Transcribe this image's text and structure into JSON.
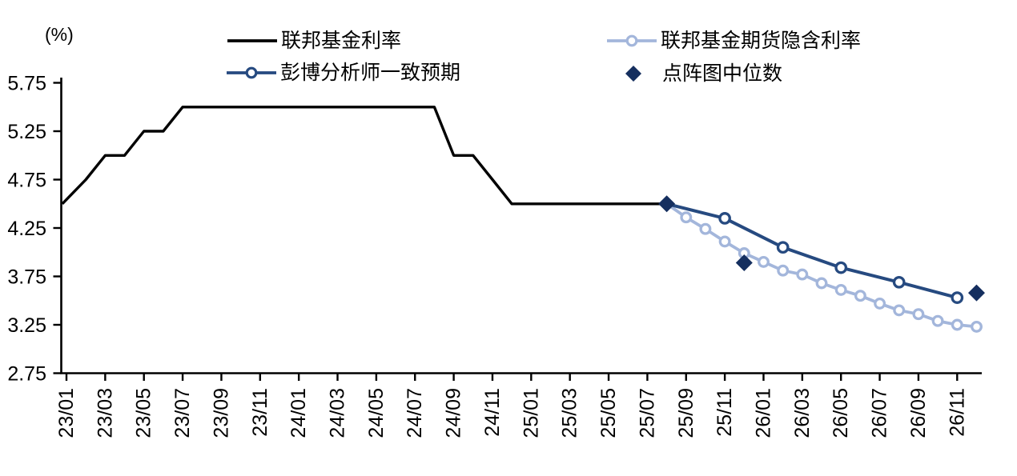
{
  "chart_data": {
    "type": "line",
    "title": "",
    "unit_label": "(%)",
    "background_color": "#ffffff",
    "axis_color": "#000000",
    "grid": false,
    "y_axis": {
      "min": 2.75,
      "max": 5.75,
      "step": 0.5,
      "ticks": [
        5.75,
        5.25,
        4.75,
        4.25,
        3.75,
        3.25,
        2.75
      ],
      "tick_labels": [
        "5.75",
        "5.25",
        "4.75",
        "4.25",
        "3.75",
        "3.25",
        "2.75"
      ]
    },
    "x_axis": {
      "first_month": "23/01",
      "last_month": "26/12",
      "tick_labels": [
        "23/01",
        "23/03",
        "23/05",
        "23/07",
        "23/09",
        "23/11",
        "24/01",
        "24/03",
        "24/05",
        "24/07",
        "24/09",
        "24/11",
        "25/01",
        "25/03",
        "25/05",
        "25/07",
        "25/09",
        "25/11",
        "26/01",
        "26/03",
        "26/05",
        "26/07",
        "26/09",
        "26/11"
      ],
      "label_rotation_deg": -90
    },
    "series": [
      {
        "name": "联邦基金期货隐含利率",
        "color": "#A3B6DB",
        "width": 3.8,
        "marker": "circle",
        "marker_r": 5.8,
        "marker_skip_first": true,
        "points": [
          [
            "25/08",
            4.5
          ],
          [
            "25/09",
            4.36
          ],
          [
            "25/10",
            4.24
          ],
          [
            "25/11",
            4.11
          ],
          [
            "25/12",
            3.99
          ],
          [
            "26/01",
            3.9
          ],
          [
            "26/02",
            3.81
          ],
          [
            "26/03",
            3.77
          ],
          [
            "26/04",
            3.68
          ],
          [
            "26/05",
            3.61
          ],
          [
            "26/06",
            3.55
          ],
          [
            "26/07",
            3.47
          ],
          [
            "26/08",
            3.4
          ],
          [
            "26/09",
            3.36
          ],
          [
            "26/10",
            3.29
          ],
          [
            "26/11",
            3.25
          ],
          [
            "26/12",
            3.23
          ]
        ]
      },
      {
        "name": "彭博分析师一致预期",
        "color": "#264A80",
        "width": 4,
        "marker": "circle",
        "marker_r": 6.2,
        "marker_skip_first": true,
        "points": [
          [
            "25/08",
            4.5
          ],
          [
            "25/11",
            4.35
          ],
          [
            "26/02",
            4.05
          ],
          [
            "26/05",
            3.84
          ],
          [
            "26/08",
            3.69
          ],
          [
            "26/11",
            3.53
          ]
        ]
      },
      {
        "name": "联邦基金利率",
        "color": "#000000",
        "width": 3.4,
        "marker": "none",
        "extend_to_axis": true,
        "points": [
          [
            "23/01",
            4.5
          ],
          [
            "23/02",
            4.75
          ],
          [
            "23/03",
            5.0
          ],
          [
            "23/04",
            5.0
          ],
          [
            "23/05",
            5.25
          ],
          [
            "23/06",
            5.25
          ],
          [
            "23/07",
            5.5
          ],
          [
            "24/08",
            5.5
          ],
          [
            "24/09",
            5.0
          ],
          [
            "24/10",
            5.0
          ],
          [
            "24/11",
            4.75
          ],
          [
            "24/12",
            4.5
          ],
          [
            "25/08",
            4.5
          ]
        ]
      },
      {
        "name": "点阵图中位数",
        "color": "#152F5F",
        "marker": "diamond",
        "marker_size": 10.5,
        "draw_line": false,
        "points": [
          [
            "25/08",
            4.5
          ],
          [
            "25/12",
            3.89
          ],
          [
            "26/12",
            3.58
          ]
        ]
      }
    ],
    "legend": [
      {
        "label": "联邦基金利率",
        "swatch": "line",
        "color": "#000000"
      },
      {
        "label": "联邦基金期货隐含利率",
        "swatch": "line-circle",
        "color": "#A3B6DB"
      },
      {
        "label": "彭博分析师一致预期",
        "swatch": "line-circle",
        "color": "#264A80"
      },
      {
        "label": "点阵图中位数",
        "swatch": "diamond",
        "color": "#152F5F"
      }
    ]
  }
}
